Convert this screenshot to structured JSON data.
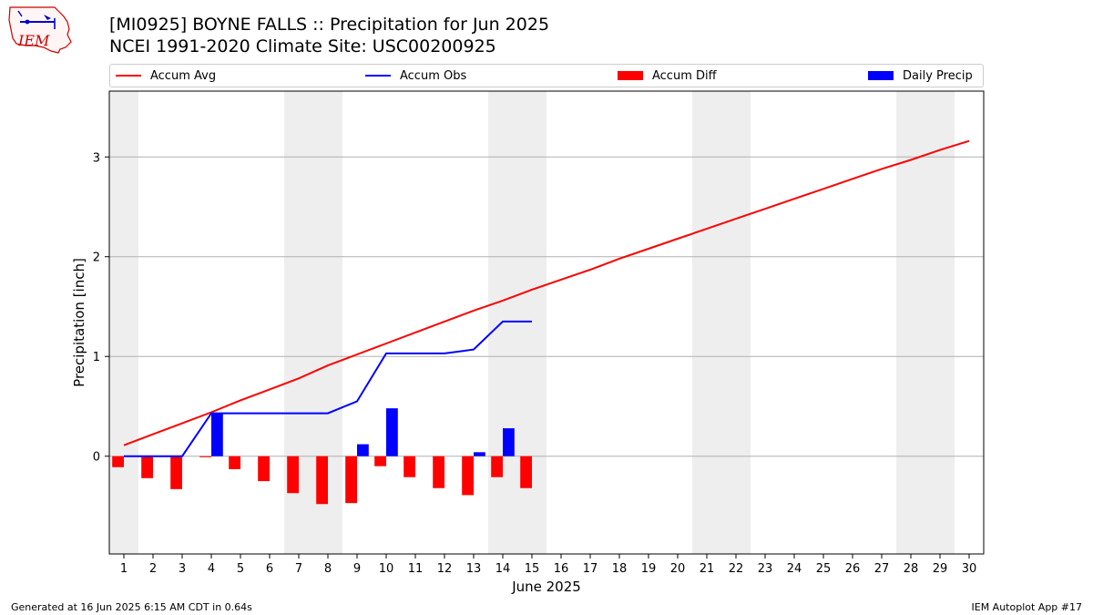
{
  "header": {
    "title_line1": "[MI0925] BOYNE FALLS :: Precipitation for Jun 2025",
    "title_line2": "NCEI 1991-2020 Climate Site: USC00200925",
    "logo_text": "IEM"
  },
  "legend": {
    "accum_avg": "Accum Avg",
    "accum_obs": "Accum Obs",
    "accum_diff": "Accum Diff",
    "daily_precip": "Daily Precip"
  },
  "footer": {
    "generated": "Generated at 16 Jun 2025 6:15 AM CDT in 0.64s",
    "app": "IEM Autoplot App #17"
  },
  "colors": {
    "accum_avg": "#ff0000",
    "accum_obs": "#0000ff",
    "accum_diff": "#ff0000",
    "daily_precip": "#0000ff",
    "weekend_shade": "#eeeeee",
    "grid": "#b0b0b0"
  },
  "chart_data": {
    "type": "line",
    "xlabel": "June 2025",
    "ylabel": "Precipitation [inch]",
    "xlim": [
      0.5,
      30.5
    ],
    "ylim": [
      -0.98,
      3.66
    ],
    "yticks": [
      0,
      1,
      2,
      3
    ],
    "days": [
      1,
      2,
      3,
      4,
      5,
      6,
      7,
      8,
      9,
      10,
      11,
      12,
      13,
      14,
      15,
      16,
      17,
      18,
      19,
      20,
      21,
      22,
      23,
      24,
      25,
      26,
      27,
      28,
      29,
      30
    ],
    "weekend_spans": [
      [
        0.5,
        1.5
      ],
      [
        6.5,
        8.5
      ],
      [
        13.5,
        15.5
      ],
      [
        20.5,
        22.5
      ],
      [
        27.5,
        29.5
      ]
    ],
    "grid": "horizontal",
    "series": [
      {
        "name": "Accum Avg",
        "kind": "line",
        "x": [
          1,
          2,
          3,
          4,
          5,
          6,
          7,
          8,
          9,
          10,
          11,
          12,
          13,
          14,
          15,
          16,
          17,
          18,
          19,
          20,
          21,
          22,
          23,
          24,
          25,
          26,
          27,
          28,
          29,
          30
        ],
        "values": [
          0.11,
          0.22,
          0.33,
          0.44,
          0.56,
          0.67,
          0.78,
          0.91,
          1.02,
          1.13,
          1.24,
          1.35,
          1.46,
          1.56,
          1.67,
          1.77,
          1.87,
          1.98,
          2.08,
          2.18,
          2.28,
          2.38,
          2.48,
          2.58,
          2.68,
          2.78,
          2.88,
          2.97,
          3.07,
          3.16
        ]
      },
      {
        "name": "Accum Obs",
        "kind": "line",
        "x": [
          1,
          2,
          3,
          4,
          5,
          6,
          7,
          8,
          9,
          10,
          11,
          12,
          13,
          14,
          15
        ],
        "values": [
          0.0,
          0.0,
          0.0,
          0.43,
          0.43,
          0.43,
          0.43,
          0.43,
          0.55,
          1.03,
          1.03,
          1.03,
          1.07,
          1.35,
          1.35
        ]
      },
      {
        "name": "Accum Diff",
        "kind": "bar",
        "x": [
          1,
          2,
          3,
          4,
          5,
          6,
          7,
          8,
          9,
          10,
          11,
          12,
          13,
          14,
          15
        ],
        "values": [
          -0.11,
          -0.22,
          -0.33,
          -0.01,
          -0.13,
          -0.25,
          -0.37,
          -0.48,
          -0.47,
          -0.1,
          -0.21,
          -0.32,
          -0.39,
          -0.21,
          -0.32
        ]
      },
      {
        "name": "Daily Precip",
        "kind": "bar",
        "x": [
          1,
          2,
          3,
          4,
          5,
          6,
          7,
          8,
          9,
          10,
          11,
          12,
          13,
          14,
          15
        ],
        "values": [
          0,
          0,
          0,
          0.43,
          0,
          0,
          0,
          0,
          0.12,
          0.48,
          0,
          0,
          0.04,
          0.28,
          0
        ]
      }
    ]
  }
}
